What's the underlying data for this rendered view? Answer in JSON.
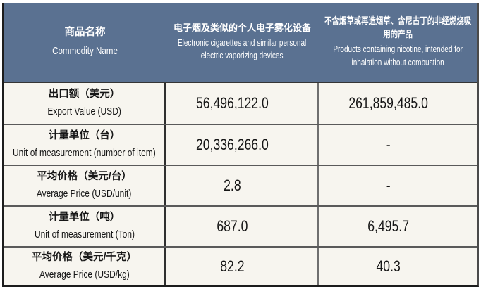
{
  "colors": {
    "header_bg": "#5a7191",
    "header_text": "#ffffff",
    "cell_bg": "#f7f5ef",
    "cell_text": "#161616",
    "outer_border": "#1c1c1c",
    "row_border": "#5a5a5a"
  },
  "table": {
    "header": [
      {
        "zh": "商品名称",
        "en": "Commodity Name"
      },
      {
        "zh": "电子烟及类似的个人电子雾化设备",
        "en": "Electronic cigarettes and similar personal electric vaporizing devices"
      },
      {
        "zh": "不含烟草或再造烟草、含尼古丁的非经燃烧吸用的产品",
        "en": "Products containing nicotine, intended for inhalation without combustion"
      }
    ],
    "rows": [
      {
        "label_zh": "出口额（美元）",
        "label_en": "Export Value (USD)",
        "values": [
          "56,496,122.0",
          "261,859,485.0"
        ]
      },
      {
        "label_zh": "计量单位（台）",
        "label_en": "Unit of measurement (number of item)",
        "values": [
          "20,336,266.0",
          "-"
        ]
      },
      {
        "label_zh": "平均价格（美元/台）",
        "label_en": "Average Price (USD/unit)",
        "values": [
          "2.8",
          "-"
        ]
      },
      {
        "label_zh": "计量单位（吨）",
        "label_en": "Unit of measurement (Ton)",
        "values": [
          "687.0",
          "6,495.7"
        ]
      },
      {
        "label_zh": "平均价格（美元/千克）",
        "label_en": "Average Price (USD/kg)",
        "values": [
          "82.2",
          "40.3"
        ]
      }
    ]
  },
  "chart_data": {
    "type": "table",
    "columns": [
      "商品名称 / Commodity Name",
      "电子烟及类似的个人电子雾化设备 / Electronic cigarettes and similar personal electric vaporizing devices",
      "不含烟草或再造烟草、含尼古丁的非经燃烧吸用的产品 / Products containing nicotine, intended for inhalation without combustion"
    ],
    "rows": [
      {
        "metric": "出口额（美元）/ Export Value (USD)",
        "electronic_cigarettes": 56496122.0,
        "nicotine_products": 261859485.0
      },
      {
        "metric": "计量单位（台）/ Unit of measurement (number of item)",
        "electronic_cigarettes": 20336266.0,
        "nicotine_products": null
      },
      {
        "metric": "平均价格（美元/台）/ Average Price (USD/unit)",
        "electronic_cigarettes": 2.8,
        "nicotine_products": null
      },
      {
        "metric": "计量单位（吨）/ Unit of measurement (Ton)",
        "electronic_cigarettes": 687.0,
        "nicotine_products": 6495.7
      },
      {
        "metric": "平均价格（美元/千克）/ Average Price (USD/kg)",
        "electronic_cigarettes": 82.2,
        "nicotine_products": 40.3
      }
    ]
  }
}
